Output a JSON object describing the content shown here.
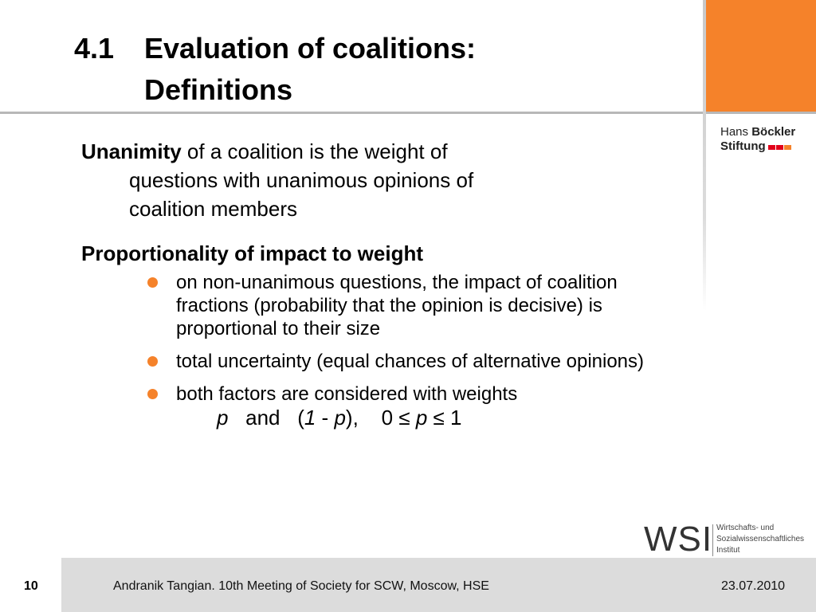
{
  "title": {
    "number": "4.1",
    "line1": "Evaluation of coalitions:",
    "line2": "Definitions"
  },
  "logos": {
    "hans_boeckler": {
      "word1": "Hans",
      "word2": "Böckler",
      "word3": "Stiftung"
    },
    "wsi": {
      "letters": "WSI",
      "line1": "Wirtschafts- und",
      "line2": "Sozialwissenschaftliches",
      "line3": "Institut"
    }
  },
  "content": {
    "unanimity_term": "Unanimity",
    "unanimity_rest1": " of a coalition is the weight of",
    "unanimity_rest2": "questions with unanimous opinions of",
    "unanimity_rest3": "coalition members",
    "heading": "Proportionality of impact to weight",
    "bullets": [
      "on non-unanimous questions, the impact of coalition fractions (probability that the opinion is decisive) is proportional to their size",
      "total uncertainty (equal chances of alternative opinions)",
      "both factors are considered with weights"
    ],
    "formula": {
      "p1": "p",
      "and": "   and   (",
      "one": "1",
      "minus": " - ",
      "p2": "p",
      "close": "),    0 ≤ ",
      "p3": "p",
      "end": " ≤ 1"
    }
  },
  "footer": {
    "page": "10",
    "text": "Andranik Tangian. 10th Meeting of Society for SCW, Moscow, HSE",
    "date": "23.07.2010"
  },
  "colors": {
    "accent": "#f5822a",
    "footer_bg": "#dcdcdc",
    "logo_red": "#e2001a"
  }
}
